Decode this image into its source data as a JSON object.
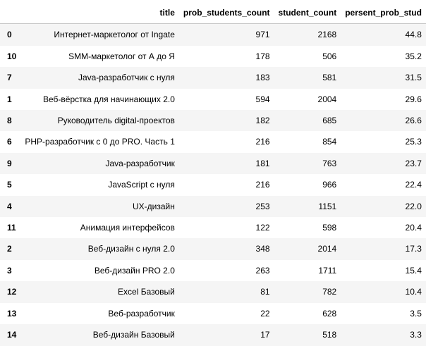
{
  "table": {
    "columns": [
      "",
      "title",
      "prob_students_count",
      "student_count",
      "persent_prob_stud"
    ],
    "rows": [
      {
        "index": "0",
        "title": "Интернет-маркетолог от Ingate",
        "prob_students_count": "971",
        "student_count": "2168",
        "persent_prob_stud": "44.8"
      },
      {
        "index": "10",
        "title": "SMM-маркетолог от А до Я",
        "prob_students_count": "178",
        "student_count": "506",
        "persent_prob_stud": "35.2"
      },
      {
        "index": "7",
        "title": "Java-разработчик с нуля",
        "prob_students_count": "183",
        "student_count": "581",
        "persent_prob_stud": "31.5"
      },
      {
        "index": "1",
        "title": "Веб-вёрстка для начинающих 2.0",
        "prob_students_count": "594",
        "student_count": "2004",
        "persent_prob_stud": "29.6"
      },
      {
        "index": "8",
        "title": "Руководитель digital-проектов",
        "prob_students_count": "182",
        "student_count": "685",
        "persent_prob_stud": "26.6"
      },
      {
        "index": "6",
        "title": "PHP-разработчик с 0 до PRO. Часть 1",
        "prob_students_count": "216",
        "student_count": "854",
        "persent_prob_stud": "25.3"
      },
      {
        "index": "9",
        "title": "Java-разработчик",
        "prob_students_count": "181",
        "student_count": "763",
        "persent_prob_stud": "23.7"
      },
      {
        "index": "5",
        "title": "JavaScript с нуля",
        "prob_students_count": "216",
        "student_count": "966",
        "persent_prob_stud": "22.4"
      },
      {
        "index": "4",
        "title": "UX-дизайн",
        "prob_students_count": "253",
        "student_count": "1151",
        "persent_prob_stud": "22.0"
      },
      {
        "index": "11",
        "title": "Анимация интерфейсов",
        "prob_students_count": "122",
        "student_count": "598",
        "persent_prob_stud": "20.4"
      },
      {
        "index": "2",
        "title": "Веб-дизайн с нуля 2.0",
        "prob_students_count": "348",
        "student_count": "2014",
        "persent_prob_stud": "17.3"
      },
      {
        "index": "3",
        "title": "Веб-дизайн PRO 2.0",
        "prob_students_count": "263",
        "student_count": "1711",
        "persent_prob_stud": "15.4"
      },
      {
        "index": "12",
        "title": "Excel Базовый",
        "prob_students_count": "81",
        "student_count": "782",
        "persent_prob_stud": "10.4"
      },
      {
        "index": "13",
        "title": "Веб-разработчик",
        "prob_students_count": "22",
        "student_count": "628",
        "persent_prob_stud": "3.5"
      },
      {
        "index": "14",
        "title": "Веб-дизайн Базовый",
        "prob_students_count": "17",
        "student_count": "518",
        "persent_prob_stud": "3.3"
      }
    ]
  }
}
